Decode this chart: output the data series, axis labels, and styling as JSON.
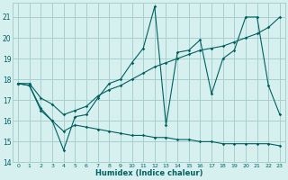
{
  "xlabel": "Humidex (Indice chaleur)",
  "xlim": [
    -0.5,
    23.5
  ],
  "ylim": [
    14,
    21.7
  ],
  "yticks": [
    14,
    15,
    16,
    17,
    18,
    19,
    20,
    21
  ],
  "xticks": [
    0,
    1,
    2,
    3,
    4,
    5,
    6,
    7,
    8,
    9,
    10,
    11,
    12,
    13,
    14,
    15,
    16,
    17,
    18,
    19,
    20,
    21,
    22,
    23
  ],
  "bg_color": "#d6efef",
  "grid_color": "#a8cfcf",
  "line_color": "#006060",
  "zigzag_x": [
    0,
    1,
    2,
    3,
    4,
    5,
    6,
    7,
    8,
    9,
    10,
    11,
    12,
    13,
    14,
    15,
    16,
    17,
    18,
    19,
    20,
    21,
    22,
    23
  ],
  "zigzag_y": [
    17.8,
    17.7,
    16.6,
    16.0,
    14.6,
    16.2,
    16.3,
    17.1,
    17.8,
    18.0,
    18.8,
    19.5,
    21.5,
    15.8,
    19.3,
    19.4,
    19.9,
    17.3,
    19.0,
    19.4,
    21.0,
    21.0,
    17.7,
    16.3
  ],
  "upper_x": [
    0,
    1,
    2,
    3,
    4,
    5,
    6,
    7,
    8,
    9,
    10,
    11,
    12,
    13,
    14,
    15,
    16,
    17,
    18,
    19,
    20,
    21,
    22,
    23
  ],
  "upper_y": [
    17.8,
    17.8,
    17.1,
    16.8,
    16.3,
    16.5,
    16.7,
    17.2,
    17.5,
    17.7,
    18.0,
    18.3,
    18.6,
    18.8,
    19.0,
    19.2,
    19.4,
    19.5,
    19.6,
    19.8,
    20.0,
    20.2,
    20.5,
    21.0
  ],
  "lower_x": [
    0,
    1,
    2,
    3,
    4,
    5,
    6,
    7,
    8,
    9,
    10,
    11,
    12,
    13,
    14,
    15,
    16,
    17,
    18,
    19,
    20,
    21,
    22,
    23
  ],
  "lower_y": [
    17.8,
    17.7,
    16.5,
    16.0,
    15.5,
    15.8,
    15.7,
    15.6,
    15.5,
    15.4,
    15.3,
    15.3,
    15.2,
    15.2,
    15.1,
    15.1,
    15.0,
    15.0,
    14.9,
    14.9,
    14.9,
    14.9,
    14.9,
    14.8
  ]
}
